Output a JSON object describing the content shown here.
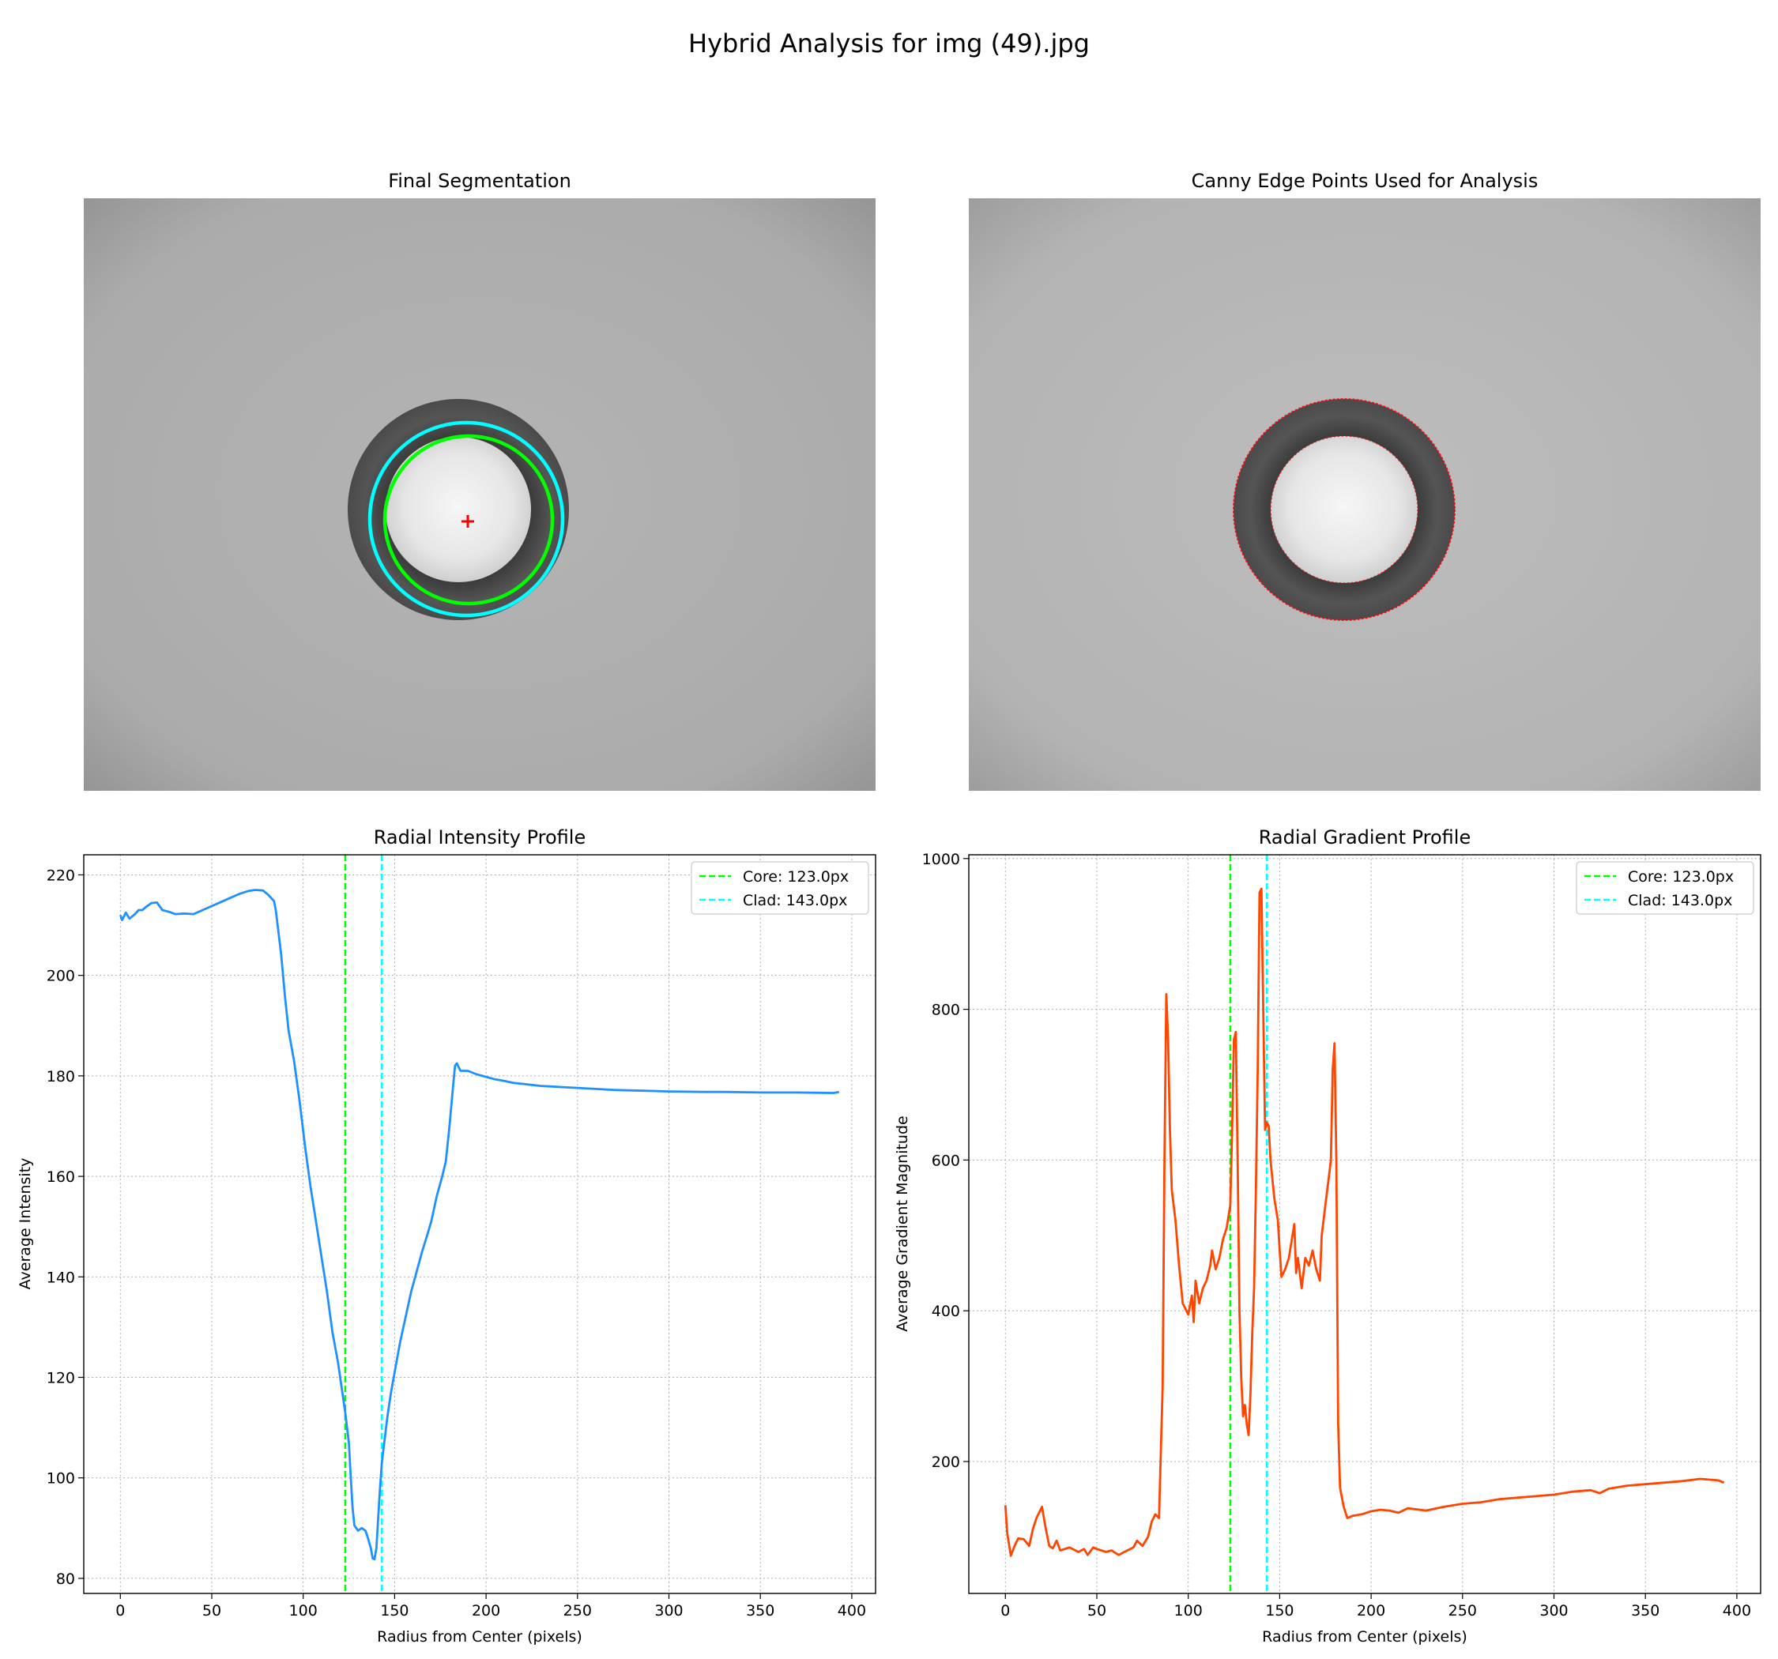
{
  "suptitle": "Hybrid Analysis for img (49).jpg",
  "panels": {
    "segmentation": {
      "title": "Final Segmentation",
      "core_color": "#00ff00",
      "clad_color": "#00ffff",
      "center_marker_color": "#ff0000"
    },
    "edges": {
      "title": "Canny Edge Points Used for Analysis",
      "edge_color": "#ff0000"
    }
  },
  "chart_data": [
    {
      "type": "line",
      "title": "Radial Intensity Profile",
      "xlabel": "Radius from Center (pixels)",
      "ylabel": "Average Intensity",
      "xlim": [
        -20,
        413
      ],
      "ylim": [
        77,
        224
      ],
      "xticks": [
        0,
        50,
        100,
        150,
        200,
        250,
        300,
        350,
        400
      ],
      "yticks": [
        80,
        100,
        120,
        140,
        160,
        180,
        200,
        220
      ],
      "grid": true,
      "legend_position": "top-right",
      "series": [
        {
          "name": "",
          "color": "#1e90ff",
          "points": [
            [
              0,
              212
            ],
            [
              1,
              211
            ],
            [
              3,
              212.5
            ],
            [
              5,
              211.3
            ],
            [
              8,
              212.2
            ],
            [
              10,
              213
            ],
            [
              12,
              213
            ],
            [
              14,
              213.6
            ],
            [
              17,
              214.4
            ],
            [
              20,
              214.5
            ],
            [
              23,
              213
            ],
            [
              27,
              212.6
            ],
            [
              30,
              212.2
            ],
            [
              35,
              212.3
            ],
            [
              40,
              212.2
            ],
            [
              45,
              213
            ],
            [
              50,
              213.8
            ],
            [
              55,
              214.6
            ],
            [
              60,
              215.4
            ],
            [
              65,
              216.2
            ],
            [
              70,
              216.8
            ],
            [
              74,
              217
            ],
            [
              78,
              216.9
            ],
            [
              81,
              216
            ],
            [
              84,
              214.8
            ],
            [
              85,
              213
            ],
            [
              86,
              210
            ],
            [
              88,
              204
            ],
            [
              90,
              196
            ],
            [
              92,
              189
            ],
            [
              95,
              183
            ],
            [
              98,
              175
            ],
            [
              101,
              166
            ],
            [
              104,
              158
            ],
            [
              107,
              151
            ],
            [
              110,
              144
            ],
            [
              113,
              137
            ],
            [
              116,
              129
            ],
            [
              119,
              123
            ],
            [
              121,
              118
            ],
            [
              123,
              113
            ],
            [
              125,
              107
            ],
            [
              126,
              100
            ],
            [
              127,
              94
            ],
            [
              128,
              90.5
            ],
            [
              130,
              89.5
            ],
            [
              132,
              90
            ],
            [
              134,
              89.5
            ],
            [
              135,
              88.5
            ],
            [
              137,
              86
            ],
            [
              138,
              84
            ],
            [
              139,
              83.8
            ],
            [
              140,
              86
            ],
            [
              141,
              92
            ],
            [
              142,
              98
            ],
            [
              143,
              103
            ],
            [
              144,
              106
            ],
            [
              146,
              112
            ],
            [
              148,
              117
            ],
            [
              150,
              121
            ],
            [
              153,
              127
            ],
            [
              156,
              132
            ],
            [
              159,
              137
            ],
            [
              162,
              141
            ],
            [
              165,
              145
            ],
            [
              168,
              148.5
            ],
            [
              170,
              151
            ],
            [
              173,
              156
            ],
            [
              176,
              160
            ],
            [
              178,
              163
            ],
            [
              180,
              170
            ],
            [
              182,
              178
            ],
            [
              183,
              182
            ],
            [
              184,
              182.5
            ],
            [
              186,
              181
            ],
            [
              190,
              181
            ],
            [
              195,
              180.3
            ],
            [
              200,
              179.8
            ],
            [
              205,
              179.3
            ],
            [
              210,
              179
            ],
            [
              215,
              178.6
            ],
            [
              220,
              178.4
            ],
            [
              225,
              178.2
            ],
            [
              230,
              178
            ],
            [
              235,
              177.9
            ],
            [
              240,
              177.8
            ],
            [
              250,
              177.6
            ],
            [
              260,
              177.4
            ],
            [
              270,
              177.2
            ],
            [
              280,
              177.1
            ],
            [
              290,
              177
            ],
            [
              300,
              176.9
            ],
            [
              310,
              176.85
            ],
            [
              320,
              176.8
            ],
            [
              330,
              176.8
            ],
            [
              340,
              176.75
            ],
            [
              350,
              176.7
            ],
            [
              360,
              176.7
            ],
            [
              370,
              176.7
            ],
            [
              380,
              176.65
            ],
            [
              390,
              176.6
            ],
            [
              393,
              176.8
            ]
          ]
        },
        {
          "name": "Core: 123.0px",
          "color": "#00ff00",
          "style": "dashed",
          "vline_x": 123.0
        },
        {
          "name": "Clad: 143.0px",
          "color": "#00ffff",
          "style": "dashed",
          "vline_x": 143.0
        }
      ]
    },
    {
      "type": "line",
      "title": "Radial Gradient Profile",
      "xlabel": "Radius from Center (pixels)",
      "ylabel": "Average Gradient Magnitude",
      "xlim": [
        -20,
        413
      ],
      "ylim": [
        25,
        1005
      ],
      "xticks": [
        0,
        50,
        100,
        150,
        200,
        250,
        300,
        350,
        400
      ],
      "yticks": [
        200,
        400,
        600,
        800,
        1000
      ],
      "grid": true,
      "legend_position": "top-right",
      "series": [
        {
          "name": "",
          "color": "#ff4500",
          "points": [
            [
              0,
              142
            ],
            [
              1,
              105
            ],
            [
              3,
              75
            ],
            [
              5,
              88
            ],
            [
              7,
              98
            ],
            [
              10,
              97
            ],
            [
              13,
              88
            ],
            [
              15,
              110
            ],
            [
              17,
              125
            ],
            [
              20,
              140
            ],
            [
              22,
              112
            ],
            [
              24,
              88
            ],
            [
              26,
              85
            ],
            [
              28,
              95
            ],
            [
              30,
              82
            ],
            [
              35,
              86
            ],
            [
              40,
              80
            ],
            [
              43,
              84
            ],
            [
              45,
              76
            ],
            [
              48,
              86
            ],
            [
              50,
              84
            ],
            [
              55,
              80
            ],
            [
              58,
              82
            ],
            [
              62,
              76
            ],
            [
              65,
              80
            ],
            [
              70,
              86
            ],
            [
              72,
              95
            ],
            [
              75,
              88
            ],
            [
              78,
              100
            ],
            [
              80,
              120
            ],
            [
              82,
              130
            ],
            [
              84,
              125
            ],
            [
              86,
              300
            ],
            [
              87,
              600
            ],
            [
              88,
              820
            ],
            [
              89,
              760
            ],
            [
              90,
              640
            ],
            [
              91,
              560
            ],
            [
              93,
              520
            ],
            [
              95,
              460
            ],
            [
              97,
              410
            ],
            [
              100,
              395
            ],
            [
              102,
              420
            ],
            [
              103,
              385
            ],
            [
              104,
              440
            ],
            [
              106,
              410
            ],
            [
              108,
              430
            ],
            [
              110,
              440
            ],
            [
              112,
              460
            ],
            [
              113,
              480
            ],
            [
              115,
              455
            ],
            [
              117,
              470
            ],
            [
              119,
              495
            ],
            [
              121,
              510
            ],
            [
              123,
              540
            ],
            [
              124,
              640
            ],
            [
              125,
              760
            ],
            [
              126,
              770
            ],
            [
              127,
              600
            ],
            [
              128,
              400
            ],
            [
              129,
              310
            ],
            [
              130,
              260
            ],
            [
              131,
              275
            ],
            [
              132,
              250
            ],
            [
              133,
              235
            ],
            [
              134,
              290
            ],
            [
              135,
              370
            ],
            [
              136,
              430
            ],
            [
              137,
              560
            ],
            [
              138,
              720
            ],
            [
              139,
              955
            ],
            [
              140,
              960
            ],
            [
              141,
              800
            ],
            [
              142,
              640
            ],
            [
              143,
              650
            ],
            [
              144,
              645
            ],
            [
              145,
              600
            ],
            [
              147,
              550
            ],
            [
              149,
              520
            ],
            [
              150,
              480
            ],
            [
              151,
              445
            ],
            [
              153,
              455
            ],
            [
              155,
              470
            ],
            [
              157,
              500
            ],
            [
              158,
              515
            ],
            [
              159,
              450
            ],
            [
              160,
              470
            ],
            [
              162,
              430
            ],
            [
              164,
              470
            ],
            [
              166,
              460
            ],
            [
              168,
              480
            ],
            [
              170,
              455
            ],
            [
              172,
              440
            ],
            [
              173,
              500
            ],
            [
              175,
              540
            ],
            [
              177,
              580
            ],
            [
              178,
              600
            ],
            [
              179,
              720
            ],
            [
              180,
              755
            ],
            [
              181,
              600
            ],
            [
              182,
              250
            ],
            [
              183,
              165
            ],
            [
              185,
              140
            ],
            [
              187,
              125
            ],
            [
              190,
              128
            ],
            [
              195,
              130
            ],
            [
              200,
              134
            ],
            [
              205,
              136
            ],
            [
              210,
              135
            ],
            [
              215,
              132
            ],
            [
              220,
              138
            ],
            [
              230,
              135
            ],
            [
              240,
              140
            ],
            [
              250,
              144
            ],
            [
              260,
              146
            ],
            [
              270,
              150
            ],
            [
              280,
              152
            ],
            [
              290,
              154
            ],
            [
              300,
              156
            ],
            [
              310,
              160
            ],
            [
              320,
              162
            ],
            [
              325,
              158
            ],
            [
              330,
              164
            ],
            [
              340,
              168
            ],
            [
              350,
              170
            ],
            [
              360,
              172
            ],
            [
              370,
              174
            ],
            [
              380,
              177
            ],
            [
              390,
              175
            ],
            [
              393,
              172
            ]
          ]
        },
        {
          "name": "Core: 123.0px",
          "color": "#00ff00",
          "style": "dashed",
          "vline_x": 123.0
        },
        {
          "name": "Clad: 143.0px",
          "color": "#00ffff",
          "style": "dashed",
          "vline_x": 143.0
        }
      ]
    }
  ]
}
